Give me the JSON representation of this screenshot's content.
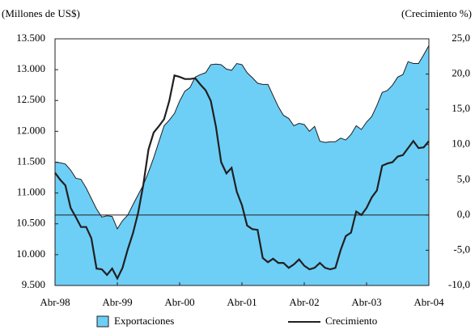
{
  "chart_data": {
    "type": "area-line",
    "y_label": "(Millones de US$)",
    "y2_label": "(Crecimiento %)",
    "categories": [
      "Abr-98",
      null,
      null,
      null,
      null,
      null,
      null,
      null,
      null,
      null,
      null,
      null,
      "Abr-99",
      null,
      null,
      null,
      null,
      null,
      null,
      null,
      null,
      null,
      null,
      null,
      "Abr-00",
      null,
      null,
      null,
      null,
      null,
      null,
      null,
      null,
      null,
      null,
      null,
      "Abr-01",
      null,
      null,
      null,
      null,
      null,
      null,
      null,
      null,
      null,
      null,
      null,
      "Abr-02",
      null,
      null,
      null,
      null,
      null,
      null,
      null,
      null,
      null,
      null,
      null,
      "Abr-03",
      null,
      null,
      null,
      null,
      null,
      null,
      null,
      null,
      null,
      null,
      null,
      "Abr-04"
    ],
    "series": [
      {
        "name": "Exportaciones",
        "color": "#6dcff6",
        "outline": "#231f20",
        "axis": "y",
        "values": [
          11500,
          11490,
          11470,
          11370,
          11240,
          11220,
          11080,
          10910,
          10740,
          10610,
          10630,
          10620,
          10420,
          10550,
          10640,
          10810,
          10970,
          11130,
          11340,
          11570,
          11830,
          12090,
          12180,
          12290,
          12490,
          12650,
          12710,
          12880,
          12920,
          12950,
          13080,
          13090,
          13080,
          13010,
          12990,
          13100,
          13080,
          12950,
          12870,
          12780,
          12760,
          12760,
          12580,
          12400,
          12260,
          12210,
          12090,
          12130,
          12110,
          12000,
          12080,
          11840,
          11820,
          11830,
          11830,
          11890,
          11860,
          11950,
          12090,
          12030,
          12150,
          12240,
          12420,
          12630,
          12660,
          12750,
          12880,
          12920,
          13130,
          13100,
          13100,
          13240,
          13390
        ]
      },
      {
        "name": "Crecimiento",
        "color": "#231f20",
        "axis": "y2",
        "values": [
          6.0,
          5.0,
          4.2,
          1.0,
          -0.3,
          -1.7,
          -1.7,
          -3.3,
          -7.6,
          -7.7,
          -8.5,
          -7.6,
          -9.0,
          -7.5,
          -4.9,
          -2.6,
          0.3,
          4.3,
          9.3,
          11.7,
          12.6,
          13.6,
          16.2,
          19.8,
          19.6,
          19.3,
          19.3,
          19.4,
          18.5,
          17.7,
          16.2,
          12.5,
          7.5,
          5.9,
          6.7,
          3.3,
          1.4,
          -1.5,
          -2.0,
          -2.1,
          -6.1,
          -6.7,
          -6.2,
          -6.8,
          -6.8,
          -7.5,
          -7.0,
          -6.3,
          -7.2,
          -7.7,
          -7.5,
          -6.8,
          -7.5,
          -7.7,
          -7.5,
          -5.0,
          -3.0,
          -2.5,
          0.5,
          0.0,
          1.0,
          2.5,
          3.5,
          7.0,
          7.3,
          7.5,
          8.3,
          8.5,
          9.5,
          10.5,
          9.5,
          9.6,
          10.5
        ]
      }
    ],
    "ylim": [
      9500,
      13500
    ],
    "yticks": [
      {
        "value": 9500,
        "label": "9.500"
      },
      {
        "value": 10000,
        "label": "10.000"
      },
      {
        "value": 10500,
        "label": "10.500"
      },
      {
        "value": 11000,
        "label": "11.000"
      },
      {
        "value": 11500,
        "label": "11.500"
      },
      {
        "value": 12000,
        "label": "12.000"
      },
      {
        "value": 12500,
        "label": "12.500"
      },
      {
        "value": 13000,
        "label": "13.000"
      },
      {
        "value": 13500,
        "label": "13.500"
      }
    ],
    "y2lim": [
      -10,
      25
    ],
    "y2ticks": [
      {
        "value": -10,
        "label": "-10,0"
      },
      {
        "value": -5,
        "label": "-5,0"
      },
      {
        "value": 0,
        "label": "0,0"
      },
      {
        "value": 5,
        "label": "5,0"
      },
      {
        "value": 10,
        "label": "10,0"
      },
      {
        "value": 15,
        "label": "15,0"
      },
      {
        "value": 20,
        "label": "20,0"
      },
      {
        "value": 25,
        "label": "25,0"
      }
    ],
    "legend": "bottom"
  }
}
